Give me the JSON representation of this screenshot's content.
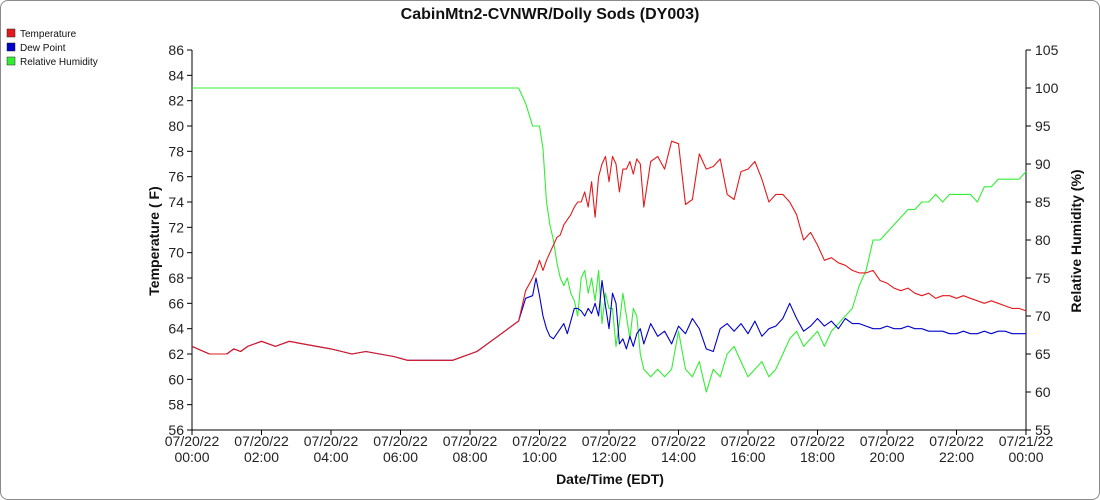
{
  "chart_data": {
    "type": "line",
    "title": "CabinMtn2-CVNWR/Dolly Sods (DY003)",
    "xlabel": "Date/Time (EDT)",
    "ylabel_left": "Temperature ( F)",
    "ylabel_right": "Relative Humidity (%)",
    "xlim_hours": [
      0,
      24
    ],
    "ylim_left": [
      56,
      86
    ],
    "ylim_right": [
      55,
      105
    ],
    "yticks_left": [
      "56",
      "58",
      "60",
      "62",
      "64",
      "66",
      "68",
      "70",
      "72",
      "74",
      "76",
      "78",
      "80",
      "82",
      "84",
      "86"
    ],
    "yticks_right": [
      "55",
      "60",
      "65",
      "70",
      "75",
      "80",
      "85",
      "90",
      "95",
      "100",
      "105"
    ],
    "xticks": [
      {
        "date": "07/20/22",
        "time": "00:00"
      },
      {
        "date": "07/20/22",
        "time": "02:00"
      },
      {
        "date": "07/20/22",
        "time": "04:00"
      },
      {
        "date": "07/20/22",
        "time": "06:00"
      },
      {
        "date": "07/20/22",
        "time": "08:00"
      },
      {
        "date": "07/20/22",
        "time": "10:00"
      },
      {
        "date": "07/20/22",
        "time": "12:00"
      },
      {
        "date": "07/20/22",
        "time": "14:00"
      },
      {
        "date": "07/20/22",
        "time": "16:00"
      },
      {
        "date": "07/20/22",
        "time": "18:00"
      },
      {
        "date": "07/20/22",
        "time": "20:00"
      },
      {
        "date": "07/20/22",
        "time": "22:00"
      },
      {
        "date": "07/21/22",
        "time": "00:00"
      }
    ],
    "grid": false,
    "legend_position": "top-left",
    "series": [
      {
        "name": "Temperature",
        "color": "#e31a1c",
        "axis": "left",
        "x": [
          0.0,
          0.5,
          1.0,
          1.2,
          1.4,
          1.6,
          2.0,
          2.4,
          2.8,
          3.2,
          4.0,
          4.6,
          5.0,
          5.4,
          5.8,
          6.2,
          6.8,
          7.5,
          8.0,
          8.2,
          8.4,
          8.6,
          8.8,
          9.0,
          9.2,
          9.4,
          9.6,
          9.8,
          9.9,
          10.0,
          10.1,
          10.2,
          10.3,
          10.4,
          10.5,
          10.6,
          10.7,
          10.8,
          10.9,
          11.0,
          11.1,
          11.2,
          11.3,
          11.4,
          11.5,
          11.6,
          11.7,
          11.8,
          11.9,
          12.0,
          12.1,
          12.2,
          12.3,
          12.4,
          12.5,
          12.6,
          12.7,
          12.8,
          12.9,
          13.0,
          13.2,
          13.4,
          13.6,
          13.8,
          14.0,
          14.2,
          14.4,
          14.6,
          14.8,
          15.0,
          15.2,
          15.4,
          15.6,
          15.8,
          16.0,
          16.2,
          16.4,
          16.6,
          16.8,
          17.0,
          17.2,
          17.4,
          17.6,
          17.8,
          18.0,
          18.2,
          18.4,
          18.6,
          18.8,
          19.0,
          19.2,
          19.4,
          19.6,
          19.8,
          20.0,
          20.2,
          20.4,
          20.6,
          20.8,
          21.0,
          21.2,
          21.4,
          21.6,
          21.8,
          22.0,
          22.2,
          22.4,
          22.6,
          22.8,
          23.0,
          23.2,
          23.4,
          23.6,
          23.8,
          24.0
        ],
        "values": [
          62.6,
          62.0,
          62.0,
          62.4,
          62.2,
          62.6,
          63.0,
          62.6,
          63.0,
          62.8,
          62.4,
          62.0,
          62.2,
          62.0,
          61.8,
          61.5,
          61.5,
          61.5,
          62.0,
          62.2,
          62.6,
          63.0,
          63.4,
          63.8,
          64.2,
          64.6,
          67.0,
          68.0,
          68.6,
          69.4,
          68.6,
          69.4,
          70.0,
          70.6,
          71.2,
          71.4,
          72.2,
          72.6,
          73.0,
          73.6,
          74.0,
          74.0,
          74.8,
          73.6,
          75.6,
          72.8,
          76.0,
          77.0,
          77.6,
          75.6,
          77.6,
          77.0,
          74.8,
          76.6,
          76.6,
          77.2,
          76.2,
          77.4,
          77.0,
          73.6,
          77.2,
          77.6,
          76.6,
          78.8,
          78.6,
          73.8,
          74.2,
          77.8,
          76.6,
          76.8,
          77.4,
          74.6,
          74.2,
          76.4,
          76.6,
          77.2,
          75.8,
          74.0,
          74.6,
          74.6,
          74.0,
          73.0,
          71.0,
          71.6,
          70.6,
          69.4,
          69.6,
          69.2,
          69.0,
          68.6,
          68.4,
          68.4,
          68.6,
          67.8,
          67.6,
          67.2,
          67.0,
          67.2,
          66.8,
          66.6,
          66.8,
          66.4,
          66.6,
          66.6,
          66.4,
          66.6,
          66.4,
          66.2,
          66.0,
          66.2,
          66.0,
          65.8,
          65.6,
          65.6,
          65.4
        ],
        "note": "x in hours after 07/20/22 00:00 EDT"
      },
      {
        "name": "Dew Point",
        "color": "#0000cc",
        "axis": "left",
        "x": [
          0.0,
          0.5,
          1.0,
          1.2,
          1.4,
          1.6,
          2.0,
          2.4,
          2.8,
          3.2,
          4.0,
          4.6,
          5.0,
          5.4,
          5.8,
          6.2,
          6.8,
          7.5,
          8.0,
          8.2,
          8.4,
          8.6,
          8.8,
          9.0,
          9.2,
          9.4,
          9.6,
          9.8,
          9.9,
          10.0,
          10.1,
          10.2,
          10.3,
          10.4,
          10.5,
          10.6,
          10.7,
          10.8,
          10.9,
          11.0,
          11.1,
          11.2,
          11.3,
          11.4,
          11.5,
          11.6,
          11.7,
          11.8,
          11.9,
          12.0,
          12.1,
          12.2,
          12.3,
          12.4,
          12.5,
          12.6,
          12.7,
          12.8,
          12.9,
          13.0,
          13.2,
          13.4,
          13.6,
          13.8,
          14.0,
          14.2,
          14.4,
          14.6,
          14.8,
          15.0,
          15.2,
          15.4,
          15.6,
          15.8,
          16.0,
          16.2,
          16.4,
          16.6,
          16.8,
          17.0,
          17.2,
          17.4,
          17.6,
          17.8,
          18.0,
          18.2,
          18.4,
          18.6,
          18.8,
          19.0,
          19.2,
          19.4,
          19.6,
          19.8,
          20.0,
          20.2,
          20.4,
          20.6,
          20.8,
          21.0,
          21.2,
          21.4,
          21.6,
          21.8,
          22.0,
          22.2,
          22.4,
          22.6,
          22.8,
          23.0,
          23.2,
          23.4,
          23.6,
          23.8,
          24.0
        ],
        "values": [
          62.6,
          62.0,
          62.0,
          62.4,
          62.2,
          62.6,
          63.0,
          62.6,
          63.0,
          62.8,
          62.4,
          62.0,
          62.2,
          62.0,
          61.8,
          61.5,
          61.5,
          61.5,
          62.0,
          62.2,
          62.6,
          63.0,
          63.4,
          63.8,
          64.2,
          64.6,
          66.4,
          66.6,
          68.0,
          66.6,
          65.0,
          64.0,
          63.4,
          63.2,
          63.6,
          64.0,
          64.4,
          63.6,
          64.6,
          65.6,
          65.6,
          65.4,
          65.0,
          65.6,
          65.2,
          66.0,
          65.0,
          67.8,
          65.8,
          64.0,
          66.8,
          66.0,
          62.8,
          63.2,
          62.4,
          63.4,
          62.6,
          63.6,
          64.0,
          62.8,
          64.4,
          63.4,
          63.8,
          62.8,
          64.2,
          63.6,
          64.8,
          64.0,
          62.4,
          62.2,
          64.0,
          64.4,
          63.8,
          64.4,
          63.6,
          64.6,
          63.4,
          64.0,
          64.2,
          64.8,
          66.0,
          64.8,
          63.8,
          64.2,
          64.8,
          64.2,
          64.6,
          64.0,
          64.8,
          64.4,
          64.4,
          64.2,
          64.0,
          64.0,
          64.2,
          64.0,
          64.0,
          64.2,
          64.0,
          64.0,
          63.8,
          63.8,
          63.8,
          63.6,
          63.6,
          63.8,
          63.6,
          63.6,
          63.8,
          63.6,
          63.8,
          63.8,
          63.6,
          63.6,
          63.6
        ],
        "note": "x in hours after 07/20/22 00:00 EDT"
      },
      {
        "name": "Relative Humidity",
        "color": "#33ee33",
        "axis": "right",
        "x": [
          0.0,
          9.4,
          9.6,
          9.8,
          9.9,
          10.0,
          10.1,
          10.2,
          10.3,
          10.4,
          10.5,
          10.6,
          10.7,
          10.8,
          10.9,
          11.0,
          11.1,
          11.2,
          11.3,
          11.4,
          11.5,
          11.6,
          11.7,
          11.8,
          11.9,
          12.0,
          12.1,
          12.2,
          12.3,
          12.4,
          12.5,
          12.6,
          12.7,
          12.8,
          12.9,
          13.0,
          13.2,
          13.4,
          13.6,
          13.8,
          14.0,
          14.2,
          14.4,
          14.6,
          14.8,
          15.0,
          15.2,
          15.4,
          15.6,
          15.8,
          16.0,
          16.2,
          16.4,
          16.6,
          16.8,
          17.0,
          17.2,
          17.4,
          17.6,
          17.8,
          18.0,
          18.2,
          18.4,
          18.6,
          18.8,
          19.0,
          19.2,
          19.4,
          19.6,
          19.8,
          20.0,
          20.2,
          20.4,
          20.6,
          20.8,
          21.0,
          21.2,
          21.4,
          21.6,
          21.8,
          22.0,
          22.2,
          22.4,
          22.6,
          22.8,
          23.0,
          23.2,
          23.4,
          23.6,
          23.8,
          24.0
        ],
        "values": [
          100,
          100,
          98,
          95,
          95,
          95,
          92,
          85,
          82,
          80,
          77,
          75,
          74,
          75,
          73,
          72,
          70,
          75,
          76,
          73,
          75,
          72,
          76,
          69,
          73,
          71,
          71,
          66,
          69,
          73,
          70,
          67,
          71,
          70,
          65,
          63,
          62,
          63,
          62,
          63,
          68,
          63,
          62,
          64,
          60,
          63,
          62,
          65,
          66,
          64,
          62,
          63,
          64,
          62,
          63,
          65,
          67,
          68,
          66,
          67,
          68,
          66,
          68,
          69,
          70,
          71,
          74,
          76,
          80,
          80,
          81,
          82,
          83,
          84,
          84,
          85,
          85,
          86,
          85,
          86,
          86,
          86,
          86,
          85,
          87,
          87,
          88,
          88,
          88,
          88,
          89
        ],
        "note": "x in hours after 07/20/22 00:00 EDT"
      }
    ]
  }
}
